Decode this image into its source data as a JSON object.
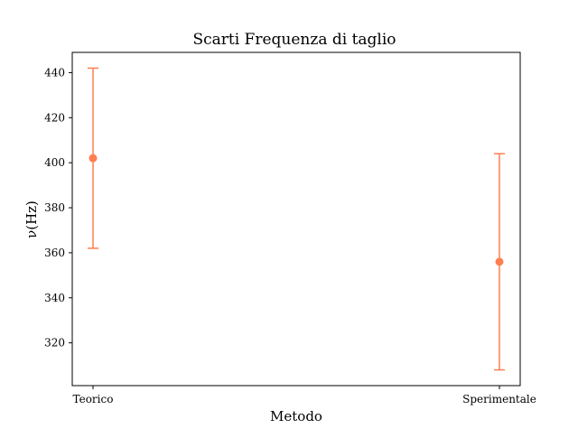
{
  "chart_data": {
    "type": "errorbar",
    "title": "Scarti Frequenza di taglio",
    "xlabel": "Metodo",
    "ylabel": "ν(Hz)",
    "categories": [
      "Teorico",
      "Sperimentale"
    ],
    "series": [
      {
        "values": [
          402,
          356
        ],
        "errors": [
          40,
          48
        ],
        "color": "#ff7f50"
      }
    ],
    "ylim": [
      301,
      449
    ],
    "yticks": [
      320,
      340,
      360,
      380,
      400,
      420,
      440
    ],
    "grid": false
  }
}
